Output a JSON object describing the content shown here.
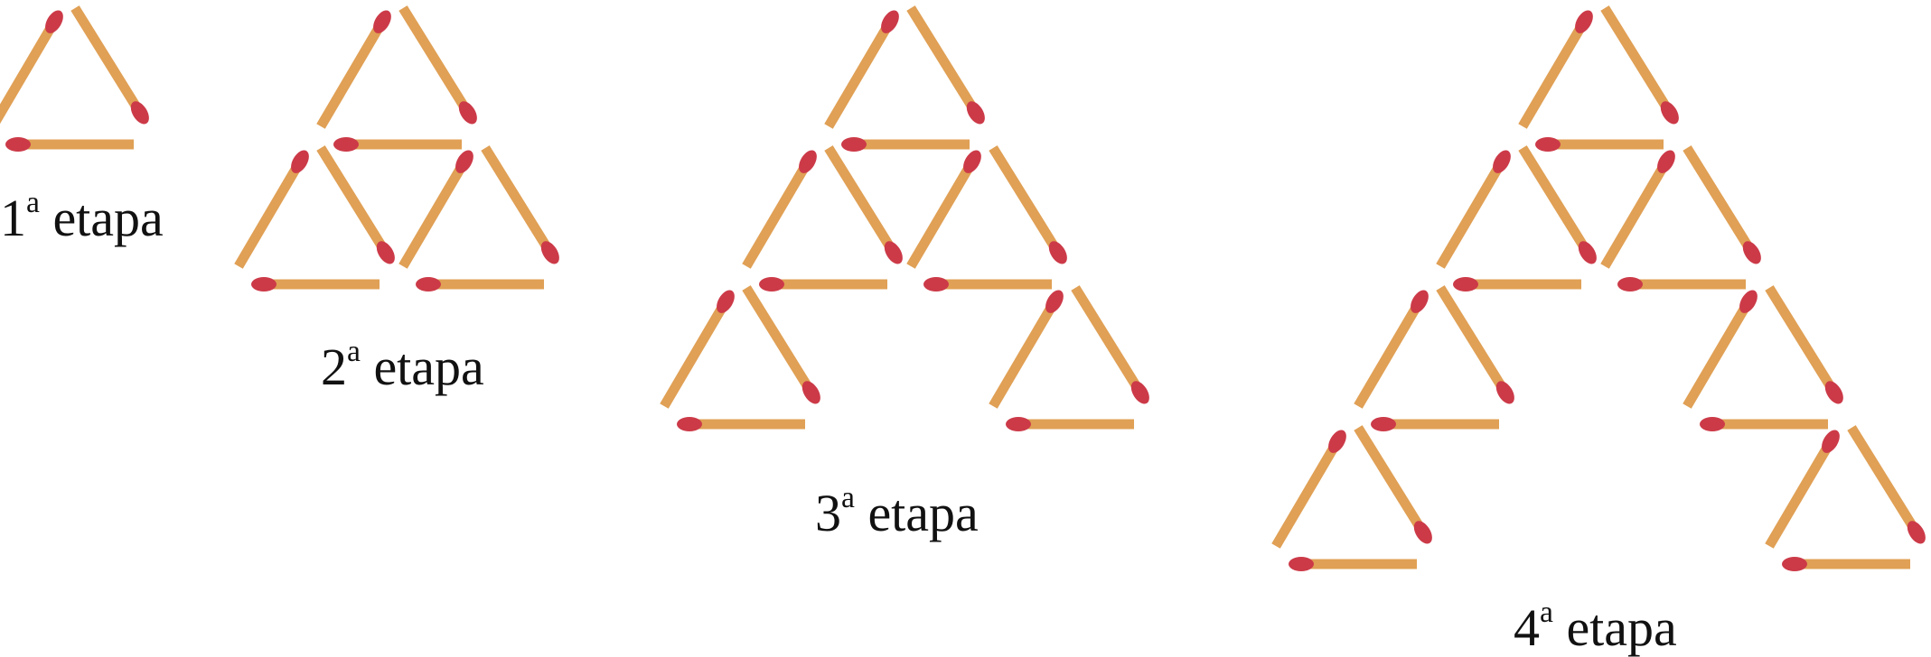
{
  "figure": {
    "stages": [
      {
        "number": "1",
        "ordinal": "a",
        "word": "etapa",
        "triangles": [
          [
            0,
            0
          ]
        ]
      },
      {
        "number": "2",
        "ordinal": "a",
        "word": "etapa",
        "triangles": [
          [
            0,
            0
          ],
          [
            1,
            0
          ],
          [
            1,
            1
          ]
        ]
      },
      {
        "number": "3",
        "ordinal": "a",
        "word": "etapa",
        "triangles": [
          [
            0,
            0
          ],
          [
            1,
            0
          ],
          [
            1,
            1
          ],
          [
            2,
            0
          ],
          [
            2,
            2
          ]
        ]
      },
      {
        "number": "4",
        "ordinal": "a",
        "word": "etapa",
        "triangles": [
          [
            0,
            0
          ],
          [
            1,
            0
          ],
          [
            1,
            1
          ],
          [
            2,
            0
          ],
          [
            2,
            2
          ],
          [
            3,
            0
          ],
          [
            3,
            3
          ]
        ]
      }
    ],
    "colors": {
      "stick": "#E0A055",
      "head": "#CC3A48",
      "background": "#FFFFFF",
      "text": "#111111"
    },
    "icon": "matchstick-icon"
  }
}
